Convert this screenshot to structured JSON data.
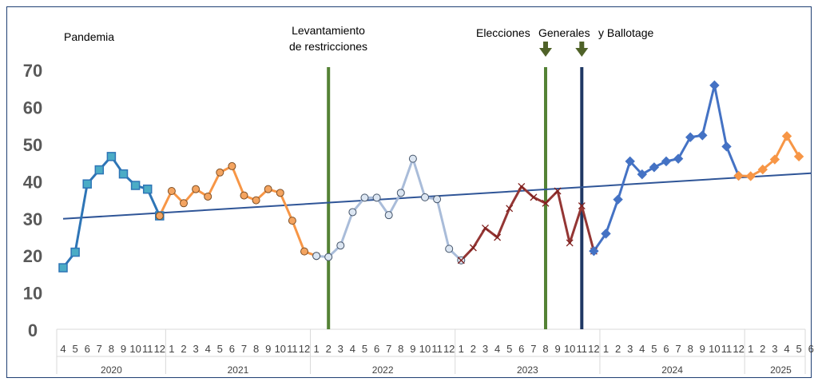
{
  "chart_data": {
    "type": "line",
    "ylim": [
      0,
      70
    ],
    "yticks": [
      0,
      10,
      20,
      30,
      40,
      50,
      60,
      70
    ],
    "grid": false,
    "month_labels": [
      "4",
      "5",
      "6",
      "7",
      "8",
      "9",
      "10",
      "11",
      "12",
      "1",
      "2",
      "3",
      "4",
      "5",
      "6",
      "7",
      "8",
      "9",
      "10",
      "11",
      "12",
      "1",
      "2",
      "3",
      "4",
      "5",
      "6",
      "7",
      "8",
      "9",
      "10",
      "11",
      "12",
      "1",
      "2",
      "3",
      "4",
      "5",
      "6",
      "7",
      "8",
      "9",
      "10",
      "11",
      "12",
      "1",
      "2",
      "3",
      "4",
      "5",
      "6",
      "7",
      "8",
      "9",
      "10",
      "11",
      "12",
      "1",
      "2",
      "3",
      "4",
      "5",
      "6"
    ],
    "years": [
      {
        "label": "2020",
        "start": 0,
        "end": 8
      },
      {
        "label": "2021",
        "start": 9,
        "end": 20
      },
      {
        "label": "2022",
        "start": 21,
        "end": 32
      },
      {
        "label": "2023",
        "start": 33,
        "end": 44
      },
      {
        "label": "2024",
        "start": 45,
        "end": 56
      },
      {
        "label": "2025",
        "start": 57,
        "end": 62
      }
    ],
    "series": [
      {
        "start": 0,
        "color": "#2e75b6",
        "marker": "square",
        "marker_fill": "#4bacc6",
        "values": [
          16.8,
          21.0,
          39.4,
          43.2,
          46.8,
          42.1,
          39.0,
          38.0,
          30.8
        ]
      },
      {
        "start": 8,
        "color": "#f79646",
        "marker": "circle",
        "marker_fill": "#f4a460",
        "values": [
          30.8,
          37.5,
          34.2,
          38.0,
          36.0,
          42.5,
          44.2,
          36.3,
          35.0,
          38.0,
          37.0,
          29.5,
          21.2,
          20.0
        ]
      },
      {
        "start": 21,
        "color": "#a9bcd9",
        "marker": "hollow-circle",
        "marker_fill": "#dce6f2",
        "values": [
          20.0,
          19.7,
          22.8,
          31.8,
          35.7,
          35.7,
          31.0,
          37.0,
          46.2,
          35.8,
          35.3,
          21.9,
          18.8
        ]
      },
      {
        "start": 33,
        "color": "#943634",
        "marker": "x",
        "marker_fill": "#c0504d",
        "values": [
          18.8,
          22.2,
          27.5,
          25.0,
          32.8,
          38.7,
          35.8,
          34.2,
          37.5,
          23.5,
          33.5,
          21.3
        ]
      },
      {
        "start": 44,
        "color": "#4472c4",
        "marker": "diamond",
        "marker_fill": "#4472c4",
        "values": [
          21.3,
          26.0,
          35.2,
          45.5,
          42.0,
          43.9,
          45.5,
          46.2,
          52.0,
          52.5,
          66.0,
          49.5,
          41.6
        ]
      },
      {
        "start": 56,
        "color": "#f79646",
        "marker": "diamond",
        "marker_fill": "#f79646",
        "values": [
          41.6,
          41.5,
          43.3,
          46.0,
          52.3,
          46.8
        ]
      }
    ],
    "trendline": {
      "start_value": 30.0,
      "end_value": 42.3,
      "color": "#2f5597"
    },
    "vlines": [
      {
        "index": 22,
        "color": "#548235"
      },
      {
        "index": 40,
        "color": "#548235"
      },
      {
        "index": 43,
        "color": "#1f3864"
      }
    ],
    "arrows": [
      {
        "index": 40,
        "color": "#4f6228"
      },
      {
        "index": 43,
        "color": "#4f6228"
      }
    ]
  },
  "annotations": {
    "pandemia": "Pandemia",
    "levantamiento_line1": "Levantamiento",
    "levantamiento_line2": "de restricciones",
    "elecciones": "Elecciones",
    "generales": "Generales",
    "ballotage": "y Ballotage"
  }
}
